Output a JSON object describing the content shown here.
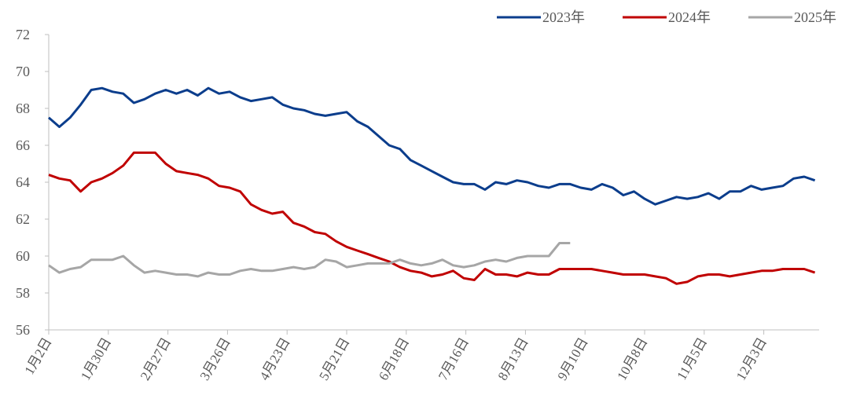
{
  "chart_data": {
    "type": "line",
    "x": [
      0,
      5,
      10,
      15,
      20,
      25,
      30,
      35,
      40,
      45,
      50,
      55,
      60,
      65,
      70,
      75,
      80,
      85,
      90,
      95,
      100,
      105,
      110,
      115,
      120,
      125,
      130,
      135,
      140,
      145,
      150,
      155,
      160,
      165,
      170,
      175,
      180,
      185,
      190,
      195,
      200,
      205,
      210,
      215,
      220,
      225,
      230,
      235,
      240,
      245,
      250,
      255,
      260,
      265,
      270,
      275,
      280,
      285,
      290,
      295,
      300,
      305,
      310,
      315,
      320,
      325,
      330,
      335,
      340,
      345,
      350,
      355,
      360
    ],
    "series": [
      {
        "name": "2023年",
        "color": "#0b3d8c",
        "values": [
          67.5,
          67.0,
          67.5,
          68.2,
          69.0,
          69.1,
          68.9,
          68.8,
          68.3,
          68.5,
          68.8,
          69.0,
          68.8,
          69.0,
          68.7,
          69.1,
          68.8,
          68.9,
          68.6,
          68.4,
          68.5,
          68.6,
          68.2,
          68.0,
          67.9,
          67.7,
          67.6,
          67.7,
          67.8,
          67.3,
          67.0,
          66.5,
          66.0,
          65.8,
          65.2,
          64.9,
          64.6,
          64.3,
          64.0,
          63.9,
          63.9,
          63.6,
          64.0,
          63.9,
          64.1,
          64.0,
          63.8,
          63.7,
          63.9,
          63.9,
          63.7,
          63.6,
          63.9,
          63.7,
          63.3,
          63.5,
          63.1,
          62.8,
          63.0,
          63.2,
          63.1,
          63.2,
          63.4,
          63.1,
          63.5,
          63.5,
          63.8,
          63.6,
          63.7,
          63.8,
          64.2,
          64.3,
          64.1
        ]
      },
      {
        "name": "2024年",
        "color": "#c00000",
        "values": [
          64.4,
          64.2,
          64.1,
          63.5,
          64.0,
          64.2,
          64.5,
          64.9,
          65.6,
          65.6,
          65.6,
          65.0,
          64.6,
          64.5,
          64.4,
          64.2,
          63.8,
          63.7,
          63.5,
          62.8,
          62.5,
          62.3,
          62.4,
          61.8,
          61.6,
          61.3,
          61.2,
          60.8,
          60.5,
          60.3,
          60.1,
          59.9,
          59.7,
          59.4,
          59.2,
          59.1,
          58.9,
          59.0,
          59.2,
          58.8,
          58.7,
          59.3,
          59.0,
          59.0,
          58.9,
          59.1,
          59.0,
          59.0,
          59.3,
          59.3,
          59.3,
          59.3,
          59.2,
          59.1,
          59.0,
          59.0,
          59.0,
          58.9,
          58.8,
          58.5,
          58.6,
          58.9,
          59.0,
          59.0,
          58.9,
          59.0,
          59.1,
          59.2,
          59.2,
          59.3,
          59.3,
          59.3,
          59.1
        ]
      },
      {
        "name": "2025年",
        "color": "#a6a6a6",
        "values": [
          59.5,
          59.1,
          59.3,
          59.4,
          59.8,
          59.8,
          59.8,
          60.0,
          59.5,
          59.1,
          59.2,
          59.1,
          59.0,
          59.0,
          58.9,
          59.1,
          59.0,
          59.0,
          59.2,
          59.3,
          59.2,
          59.2,
          59.3,
          59.4,
          59.3,
          59.4,
          59.8,
          59.7,
          59.4,
          59.5,
          59.6,
          59.6,
          59.6,
          59.8,
          59.6,
          59.5,
          59.6,
          59.8,
          59.5,
          59.4,
          59.5,
          59.7,
          59.8,
          59.7,
          59.9,
          60.0,
          60.0,
          60.0,
          60.7,
          60.7,
          null,
          null,
          null,
          null,
          null,
          null,
          null,
          null,
          null,
          null,
          null,
          null,
          null,
          null,
          null,
          null,
          null,
          null,
          null,
          null,
          null,
          null,
          null
        ]
      }
    ],
    "xlim": [
      0,
      362
    ],
    "xticks": [
      {
        "value": 0,
        "label": "1月2日"
      },
      {
        "value": 28,
        "label": "1月30日"
      },
      {
        "value": 56,
        "label": "2月27日"
      },
      {
        "value": 84,
        "label": "3月26日"
      },
      {
        "value": 112,
        "label": "4月23日"
      },
      {
        "value": 140,
        "label": "5月21日"
      },
      {
        "value": 168,
        "label": "6月18日"
      },
      {
        "value": 196,
        "label": "7月16日"
      },
      {
        "value": 224,
        "label": "8月13日"
      },
      {
        "value": 252,
        "label": "9月10日"
      },
      {
        "value": 280,
        "label": "10月8日"
      },
      {
        "value": 308,
        "label": "11月5日"
      },
      {
        "value": 336,
        "label": "12月3日"
      }
    ],
    "ylim": [
      56,
      72
    ],
    "yticks": [
      56,
      58,
      60,
      62,
      64,
      66,
      68,
      70,
      72
    ],
    "legend": "top-right"
  }
}
